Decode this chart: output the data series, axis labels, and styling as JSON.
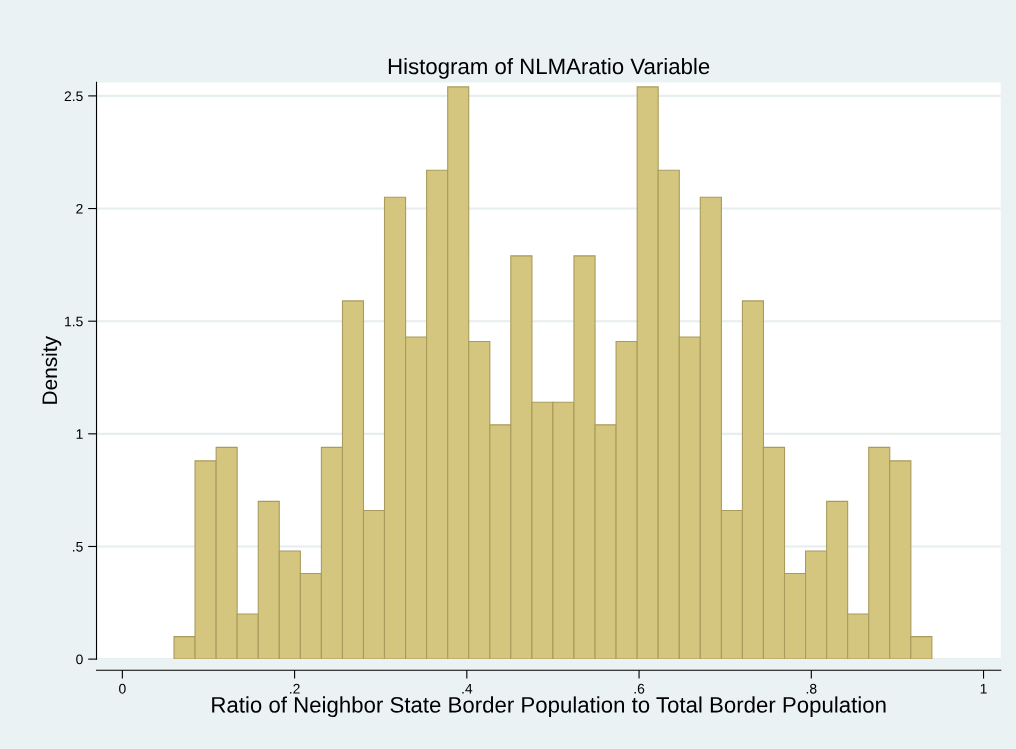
{
  "chart_data": {
    "type": "histogram",
    "title": "Histogram of NLMAratio Variable",
    "xlabel": "Ratio of Neighbor State Border Population to Total Border Population",
    "ylabel": "Density",
    "bins": [
      0.06,
      0.0844,
      0.1089,
      0.1333,
      0.1578,
      0.1822,
      0.2067,
      0.2311,
      0.2556,
      0.28,
      0.3044,
      0.3289,
      0.3533,
      0.3778,
      0.4022,
      0.4267,
      0.4511,
      0.4756,
      0.5,
      0.5244,
      0.5489,
      0.5733,
      0.5978,
      0.6222,
      0.6467,
      0.6711,
      0.6956,
      0.72,
      0.7444,
      0.7689,
      0.7933,
      0.8178,
      0.8422,
      0.8667,
      0.8911,
      0.9156,
      0.94
    ],
    "values": [
      0.1,
      0.88,
      0.94,
      0.2,
      0.7,
      0.48,
      0.38,
      0.94,
      1.59,
      0.66,
      2.05,
      1.43,
      2.17,
      2.54,
      1.41,
      1.04,
      1.79,
      1.14,
      1.14,
      1.79,
      1.04,
      1.41,
      2.54,
      2.17,
      1.43,
      2.05,
      0.66,
      1.59,
      0.94,
      0.38,
      0.48,
      0.7,
      0.2,
      0.94,
      0.88,
      0.1
    ],
    "color": "#d5c67f",
    "xlim": [
      -0.03,
      1.02
    ],
    "ylim": [
      0,
      2.56
    ],
    "xticks": [
      0,
      {
        "value": 0.2,
        "label": ".2"
      },
      {
        "value": 0.4,
        "label": ".4"
      },
      {
        "value": 0.6,
        "label": ".6"
      },
      {
        "value": 0.8,
        "label": ".8"
      },
      1
    ],
    "yticks": [
      0,
      {
        "value": 0.5,
        "label": ".5"
      },
      1,
      {
        "value": 1.5,
        "label": "1.5"
      },
      2,
      {
        "value": 2.5,
        "label": "2.5"
      }
    ],
    "grid": "y"
  }
}
